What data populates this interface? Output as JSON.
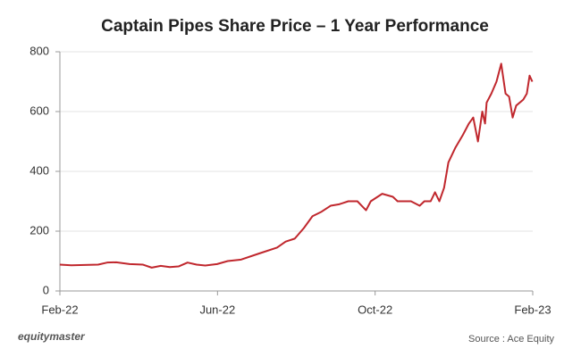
{
  "chart_data": {
    "type": "line",
    "title": "Captain Pipes Share Price – 1 Year Performance",
    "brand": "equitymaster",
    "source": "Source : Ace Equity",
    "x": [
      0,
      0.29,
      0.63,
      0.97,
      1.2,
      1.43,
      1.77,
      2.11,
      2.33,
      2.56,
      2.79,
      3.01,
      3.24,
      3.47,
      3.69,
      3.99,
      4.26,
      4.6,
      5.05,
      5.51,
      5.73,
      5.96,
      6.19,
      6.41,
      6.64,
      6.87,
      7.09,
      7.32,
      7.55,
      7.66,
      7.77,
      7.89,
      8.18,
      8.45,
      8.57,
      8.91,
      9.13,
      9.25,
      9.41,
      9.52,
      9.63,
      9.75,
      9.86,
      10.04,
      10.22,
      10.38,
      10.49,
      10.61,
      10.72,
      10.79,
      10.83,
      10.95,
      11.08,
      11.2,
      11.31,
      11.4,
      11.49,
      11.58,
      11.76,
      11.85,
      11.92,
      11.99
    ],
    "series": [
      {
        "color": "#c0272d",
        "values": [
          88,
          86,
          87,
          88,
          95,
          96,
          90,
          88,
          78,
          84,
          80,
          82,
          95,
          88,
          85,
          90,
          100,
          105,
          125,
          145,
          165,
          175,
          210,
          250,
          265,
          285,
          290,
          300,
          300,
          285,
          270,
          300,
          325,
          315,
          300,
          300,
          285,
          300,
          300,
          330,
          300,
          345,
          430,
          480,
          520,
          560,
          580,
          500,
          600,
          560,
          630,
          660,
          700,
          760,
          660,
          650,
          580,
          620,
          640,
          660,
          720,
          700
        ]
      }
    ],
    "xlim": [
      0,
      12
    ],
    "xticks": [
      {
        "value": 0,
        "label": "Feb-22"
      },
      {
        "value": 4,
        "label": "Jun-22"
      },
      {
        "value": 8,
        "label": "Oct-22"
      },
      {
        "value": 12,
        "label": "Feb-23"
      }
    ],
    "ylim": [
      0,
      800
    ],
    "yticks": [
      0,
      200,
      400,
      600,
      800
    ],
    "grid": true
  }
}
